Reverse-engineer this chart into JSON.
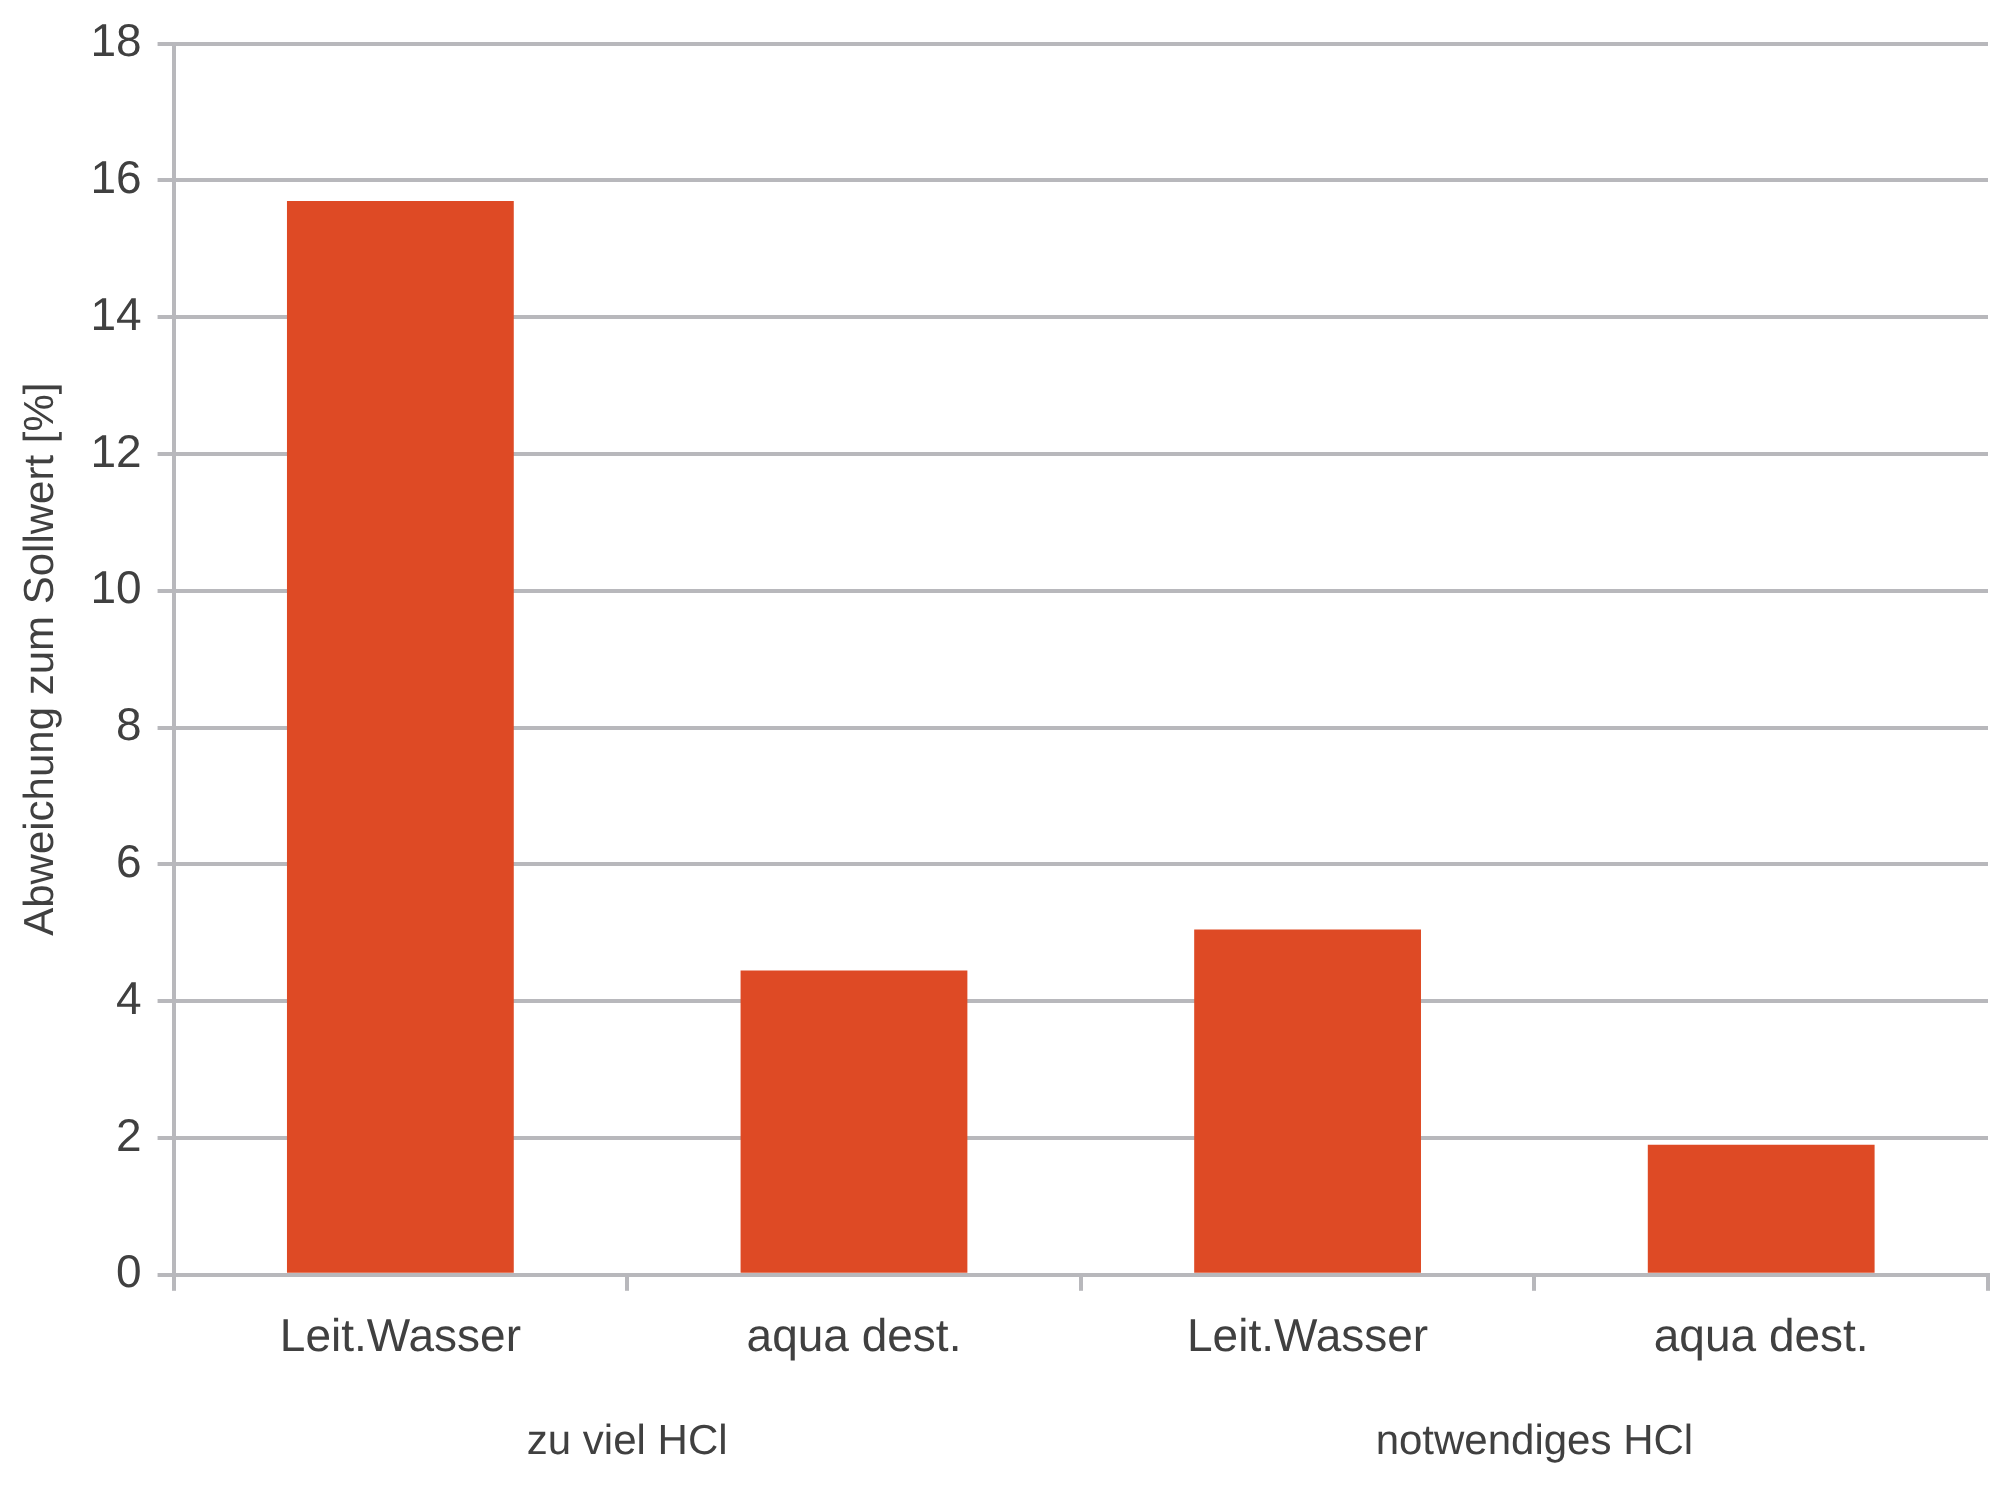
{
  "chart_data": {
    "type": "bar",
    "ylabel": "Abweichung zum Sollwert [%]",
    "categories": [
      "Leit.Wasser",
      "aqua dest.",
      "Leit.Wasser",
      "aqua dest."
    ],
    "values": [
      15.7,
      4.45,
      5.05,
      1.9
    ],
    "color": "#de4a25",
    "ylim": [
      0,
      18
    ],
    "yticks": [
      0,
      2,
      4,
      6,
      8,
      10,
      12,
      14,
      16,
      18
    ],
    "grid": "y",
    "annotations": [
      "zu viel HCl",
      "notwendiges HCl"
    ]
  }
}
